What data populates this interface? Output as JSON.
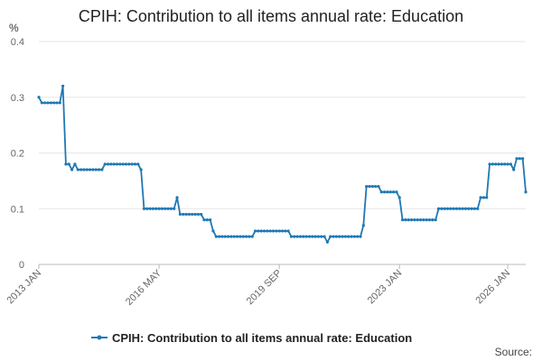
{
  "chart_data": {
    "type": "line",
    "title": "CPIH: Contribution to all items annual rate: Education",
    "unit": "%",
    "ylim": [
      0,
      0.4
    ],
    "yticks": [
      "0",
      "0.1",
      "0.2",
      "0.3",
      "0.4"
    ],
    "ytick_values": [
      0,
      0.1,
      0.2,
      0.3,
      0.4
    ],
    "x_start": "2013 JAN",
    "x_end": "2026 JAN",
    "xticks": [
      {
        "label": "2013 JAN",
        "index": 0
      },
      {
        "label": "2016 MAY",
        "index": 40
      },
      {
        "label": "2019 SEP",
        "index": 80
      },
      {
        "label": "2023 JAN",
        "index": 120
      },
      {
        "label": "2026 JAN",
        "index": 156
      }
    ],
    "grid": true,
    "legend_position": "bottom",
    "series": [
      {
        "name": "CPIH: Contribution to all items annual rate: Education",
        "color": "#1f78b4",
        "values": [
          0.3,
          0.29,
          0.29,
          0.29,
          0.29,
          0.29,
          0.29,
          0.29,
          0.32,
          0.18,
          0.18,
          0.17,
          0.18,
          0.17,
          0.17,
          0.17,
          0.17,
          0.17,
          0.17,
          0.17,
          0.17,
          0.17,
          0.18,
          0.18,
          0.18,
          0.18,
          0.18,
          0.18,
          0.18,
          0.18,
          0.18,
          0.18,
          0.18,
          0.18,
          0.17,
          0.1,
          0.1,
          0.1,
          0.1,
          0.1,
          0.1,
          0.1,
          0.1,
          0.1,
          0.1,
          0.1,
          0.12,
          0.09,
          0.09,
          0.09,
          0.09,
          0.09,
          0.09,
          0.09,
          0.09,
          0.08,
          0.08,
          0.08,
          0.06,
          0.05,
          0.05,
          0.05,
          0.05,
          0.05,
          0.05,
          0.05,
          0.05,
          0.05,
          0.05,
          0.05,
          0.05,
          0.05,
          0.06,
          0.06,
          0.06,
          0.06,
          0.06,
          0.06,
          0.06,
          0.06,
          0.06,
          0.06,
          0.06,
          0.06,
          0.05,
          0.05,
          0.05,
          0.05,
          0.05,
          0.05,
          0.05,
          0.05,
          0.05,
          0.05,
          0.05,
          0.05,
          0.04,
          0.05,
          0.05,
          0.05,
          0.05,
          0.05,
          0.05,
          0.05,
          0.05,
          0.05,
          0.05,
          0.05,
          0.07,
          0.14,
          0.14,
          0.14,
          0.14,
          0.14,
          0.13,
          0.13,
          0.13,
          0.13,
          0.13,
          0.13,
          0.12,
          0.08,
          0.08,
          0.08,
          0.08,
          0.08,
          0.08,
          0.08,
          0.08,
          0.08,
          0.08,
          0.08,
          0.08,
          0.1,
          0.1,
          0.1,
          0.1,
          0.1,
          0.1,
          0.1,
          0.1,
          0.1,
          0.1,
          0.1,
          0.1,
          0.1,
          0.1,
          0.12,
          0.12,
          0.12,
          0.18,
          0.18,
          0.18,
          0.18,
          0.18,
          0.18,
          0.18,
          0.18,
          0.17,
          0.19,
          0.19,
          0.19,
          0.13
        ]
      }
    ]
  },
  "source_label": "Source:"
}
